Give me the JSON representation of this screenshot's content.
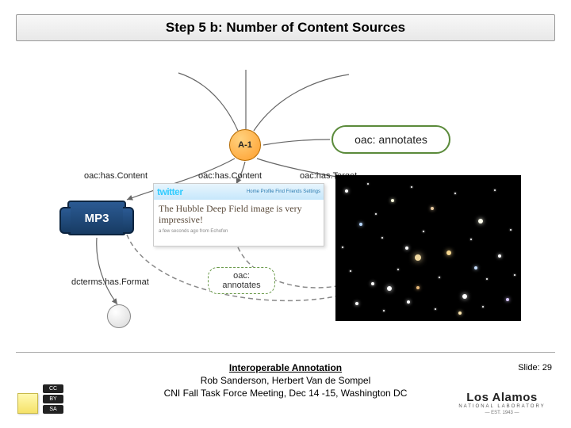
{
  "slide": {
    "title": "Step 5 b: Number of Content Sources",
    "number": "Slide: 29"
  },
  "graph": {
    "root_node": "A-1",
    "edge_big_label": "oac: annotates",
    "edge_small_label": "oac:\nannotates",
    "predicates": {
      "hasContent1": "oac:has.Content",
      "hasContent2": "oac:has.Content",
      "hasTarget": "oac:has.Target",
      "hasFormat": "dcterms:has.Format"
    },
    "mp3_label": "MP3",
    "tweet": {
      "logo": "twitter",
      "nav": "Home  Profile  Find Friends  Settings",
      "body": "The Hubble Deep Field image is very impressive!",
      "meta": "a few seconds ago from Echofon"
    }
  },
  "footer": {
    "title": "Interoperable Annotation",
    "line2": "Rob Sanderson, Herbert Van de Sompel",
    "line3": "CNI Fall Task Force Meeting, Dec 14 -15, Washington DC"
  },
  "lanl": {
    "top": "• Los Alamos",
    "mid": "Los Alamos",
    "nat": "NATIONAL LABORATORY",
    "est": "— EST. 1943 —"
  },
  "cc": {
    "a": "CC",
    "b": "BY",
    "c": "SA"
  },
  "colors": {
    "node_fill": "#ff9e2c",
    "label_border": "#5a8a3a",
    "edge": "#777777",
    "mp3": "#1d4a7a"
  },
  "starfield": [
    [
      12,
      18,
      2,
      "#fff"
    ],
    [
      40,
      10,
      1,
      "#fff"
    ],
    [
      70,
      30,
      2,
      "#ffd"
    ],
    [
      95,
      14,
      1,
      "#fff"
    ],
    [
      120,
      40,
      2,
      "#e8caa0"
    ],
    [
      150,
      22,
      1,
      "#fff"
    ],
    [
      180,
      55,
      3,
      "#ffe"
    ],
    [
      200,
      18,
      1,
      "#fff"
    ],
    [
      30,
      60,
      2,
      "#b8d8ff"
    ],
    [
      58,
      78,
      1,
      "#fff"
    ],
    [
      88,
      90,
      2,
      "#fff"
    ],
    [
      110,
      70,
      1,
      "#fff"
    ],
    [
      140,
      95,
      3,
      "#f8d890"
    ],
    [
      170,
      80,
      1,
      "#fff"
    ],
    [
      205,
      100,
      2,
      "#fff"
    ],
    [
      220,
      68,
      1,
      "#fff"
    ],
    [
      18,
      120,
      1,
      "#fff"
    ],
    [
      45,
      135,
      2,
      "#fff"
    ],
    [
      78,
      118,
      1,
      "#fff"
    ],
    [
      102,
      140,
      2,
      "#e8b878"
    ],
    [
      130,
      128,
      1,
      "#fff"
    ],
    [
      160,
      150,
      3,
      "#fff"
    ],
    [
      190,
      130,
      1,
      "#fff"
    ],
    [
      215,
      155,
      2,
      "#d8c8ff"
    ],
    [
      25,
      160,
      2,
      "#fff"
    ],
    [
      60,
      170,
      1,
      "#fff"
    ],
    [
      90,
      158,
      2,
      "#fff"
    ],
    [
      125,
      168,
      1,
      "#fff"
    ],
    [
      155,
      172,
      2,
      "#ffe8b0"
    ],
    [
      185,
      165,
      1,
      "#fff"
    ],
    [
      8,
      90,
      1,
      "#fff"
    ],
    [
      225,
      125,
      1,
      "#fff"
    ],
    [
      50,
      48,
      1,
      "#fff"
    ],
    [
      175,
      115,
      2,
      "#c8e0ff"
    ],
    [
      100,
      100,
      4,
      "#f0d8a0"
    ],
    [
      65,
      140,
      3,
      "#fff"
    ]
  ]
}
